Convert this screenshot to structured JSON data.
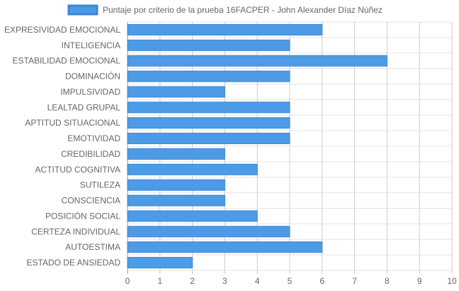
{
  "chart_data": {
    "type": "bar",
    "orientation": "horizontal",
    "series": [
      {
        "name": "Puntaje por criterio de la prueba 16FACPER - John Alexander Díaz Núñez",
        "values": [
          6,
          5,
          8,
          5,
          3,
          5,
          5,
          5,
          3,
          4,
          3,
          3,
          4,
          5,
          6,
          2
        ]
      }
    ],
    "categories": [
      "EXPRESIVIDAD EMOCIONAL",
      "INTELIGENCIA",
      "ESTABILIDAD EMOCIONAL",
      "DOMINACIÓN",
      "IMPULSIVIDAD",
      "LEALTAD GRUPAL",
      "APTITUD SITUACIONAL",
      "EMOTIVIDAD",
      "CREDIBILIDAD",
      "ACTITUD COGNITIVA",
      "SUTILEZA",
      "CONSCIENCIA",
      "POSICIÓN SOCIAL",
      "CERTEZA INDIVIDUAL",
      "AUTOESTIMA",
      "ESTADO DE ANSIEDAD"
    ],
    "xlim": [
      0,
      10
    ],
    "xticks": [
      "0",
      "1",
      "2",
      "3",
      "4",
      "5",
      "6",
      "7",
      "8",
      "9",
      "10"
    ],
    "grid": true,
    "legend_position": "top",
    "colors": {
      "bar": "#4d9be6",
      "bar_border": "#3a86d6",
      "grid": "#e5e5e5",
      "grid_major": "#cccccc"
    }
  }
}
